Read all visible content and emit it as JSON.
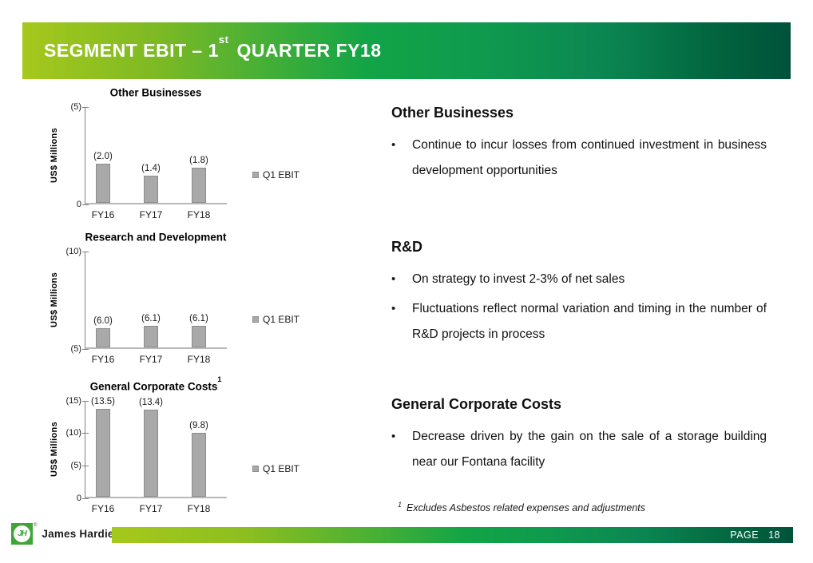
{
  "header": {
    "title_pre": "SEGMENT EBIT – 1",
    "title_sup": "st",
    "title_post": "QUARTER FY18"
  },
  "glyphs": {
    "bullet": "•"
  },
  "colors": {
    "accent_gradient_start": "#a6c81c",
    "accent_gradient_mid": "#0f9a4e",
    "accent_gradient_end": "#00523a",
    "bar_fill": "#a9a9a9",
    "bar_border": "#8c8c8c",
    "logo_green": "#3fa535"
  },
  "chart_data": [
    {
      "type": "bar",
      "title": "Other Businesses",
      "title_sup": "",
      "ylabel": "US$ Millions",
      "legend": "Q1 EBIT",
      "categories": [
        "FY16",
        "FY17",
        "FY18"
      ],
      "values": [
        -2.0,
        -1.4,
        -1.8
      ],
      "value_labels": [
        "(2.0)",
        "(1.4)",
        "(1.8)"
      ],
      "axis_min": 0,
      "axis_max": 5,
      "ticks": [
        {
          "label": "(5)",
          "at": 5
        },
        {
          "label": "0",
          "at": 0
        }
      ],
      "note": "parenthesised values are negative (losses); axis shown from 0 down to (5)"
    },
    {
      "type": "bar",
      "title": "Research and Development",
      "title_sup": "",
      "ylabel": "US$ Millions",
      "legend": "Q1 EBIT",
      "categories": [
        "FY16",
        "FY17",
        "FY18"
      ],
      "values": [
        -6.0,
        -6.1,
        -6.1
      ],
      "value_labels": [
        "(6.0)",
        "(6.1)",
        "(6.1)"
      ],
      "axis_min": 5,
      "axis_max": 10,
      "ticks": [
        {
          "label": "(10)",
          "at": 10
        },
        {
          "label": "(5)",
          "at": 5
        }
      ],
      "note": "parenthesised values are negative (losses); axis shown from (5) down to (10)"
    },
    {
      "type": "bar",
      "title": "General Corporate Costs",
      "title_sup": "1",
      "ylabel": "US$ Millions",
      "legend": "Q1 EBIT",
      "categories": [
        "FY16",
        "FY17",
        "FY18"
      ],
      "values": [
        -13.5,
        -13.4,
        -9.8
      ],
      "value_labels": [
        "(13.5)",
        "(13.4)",
        "(9.8)"
      ],
      "axis_min": 0,
      "axis_max": 15,
      "ticks": [
        {
          "label": "(15)",
          "at": 15
        },
        {
          "label": "(10)",
          "at": 10
        },
        {
          "label": "(5)",
          "at": 5
        },
        {
          "label": "0",
          "at": 0
        }
      ],
      "note": "parenthesised values are negative (costs); axis shown from 0 down to (15)"
    }
  ],
  "sections": [
    {
      "heading": "Other Businesses",
      "bullets": [
        "Continue to incur losses from continued investment in business development opportunities"
      ]
    },
    {
      "heading": "R&D",
      "bullets": [
        "On strategy to invest 2-3% of net sales",
        "Fluctuations reflect normal variation and timing in the number of R&D projects in process"
      ]
    },
    {
      "heading": "General Corporate Costs",
      "bullets": [
        "Decrease driven by the gain on the sale of a storage building near our Fontana facility"
      ]
    }
  ],
  "footnote": {
    "sup": "1",
    "text": "Excludes Asbestos related expenses and adjustments"
  },
  "footer": {
    "logo_monogram": "JH",
    "registered_mark": "®",
    "logo_text": "James Hardie",
    "page_label": "PAGE",
    "page_number": "18"
  }
}
